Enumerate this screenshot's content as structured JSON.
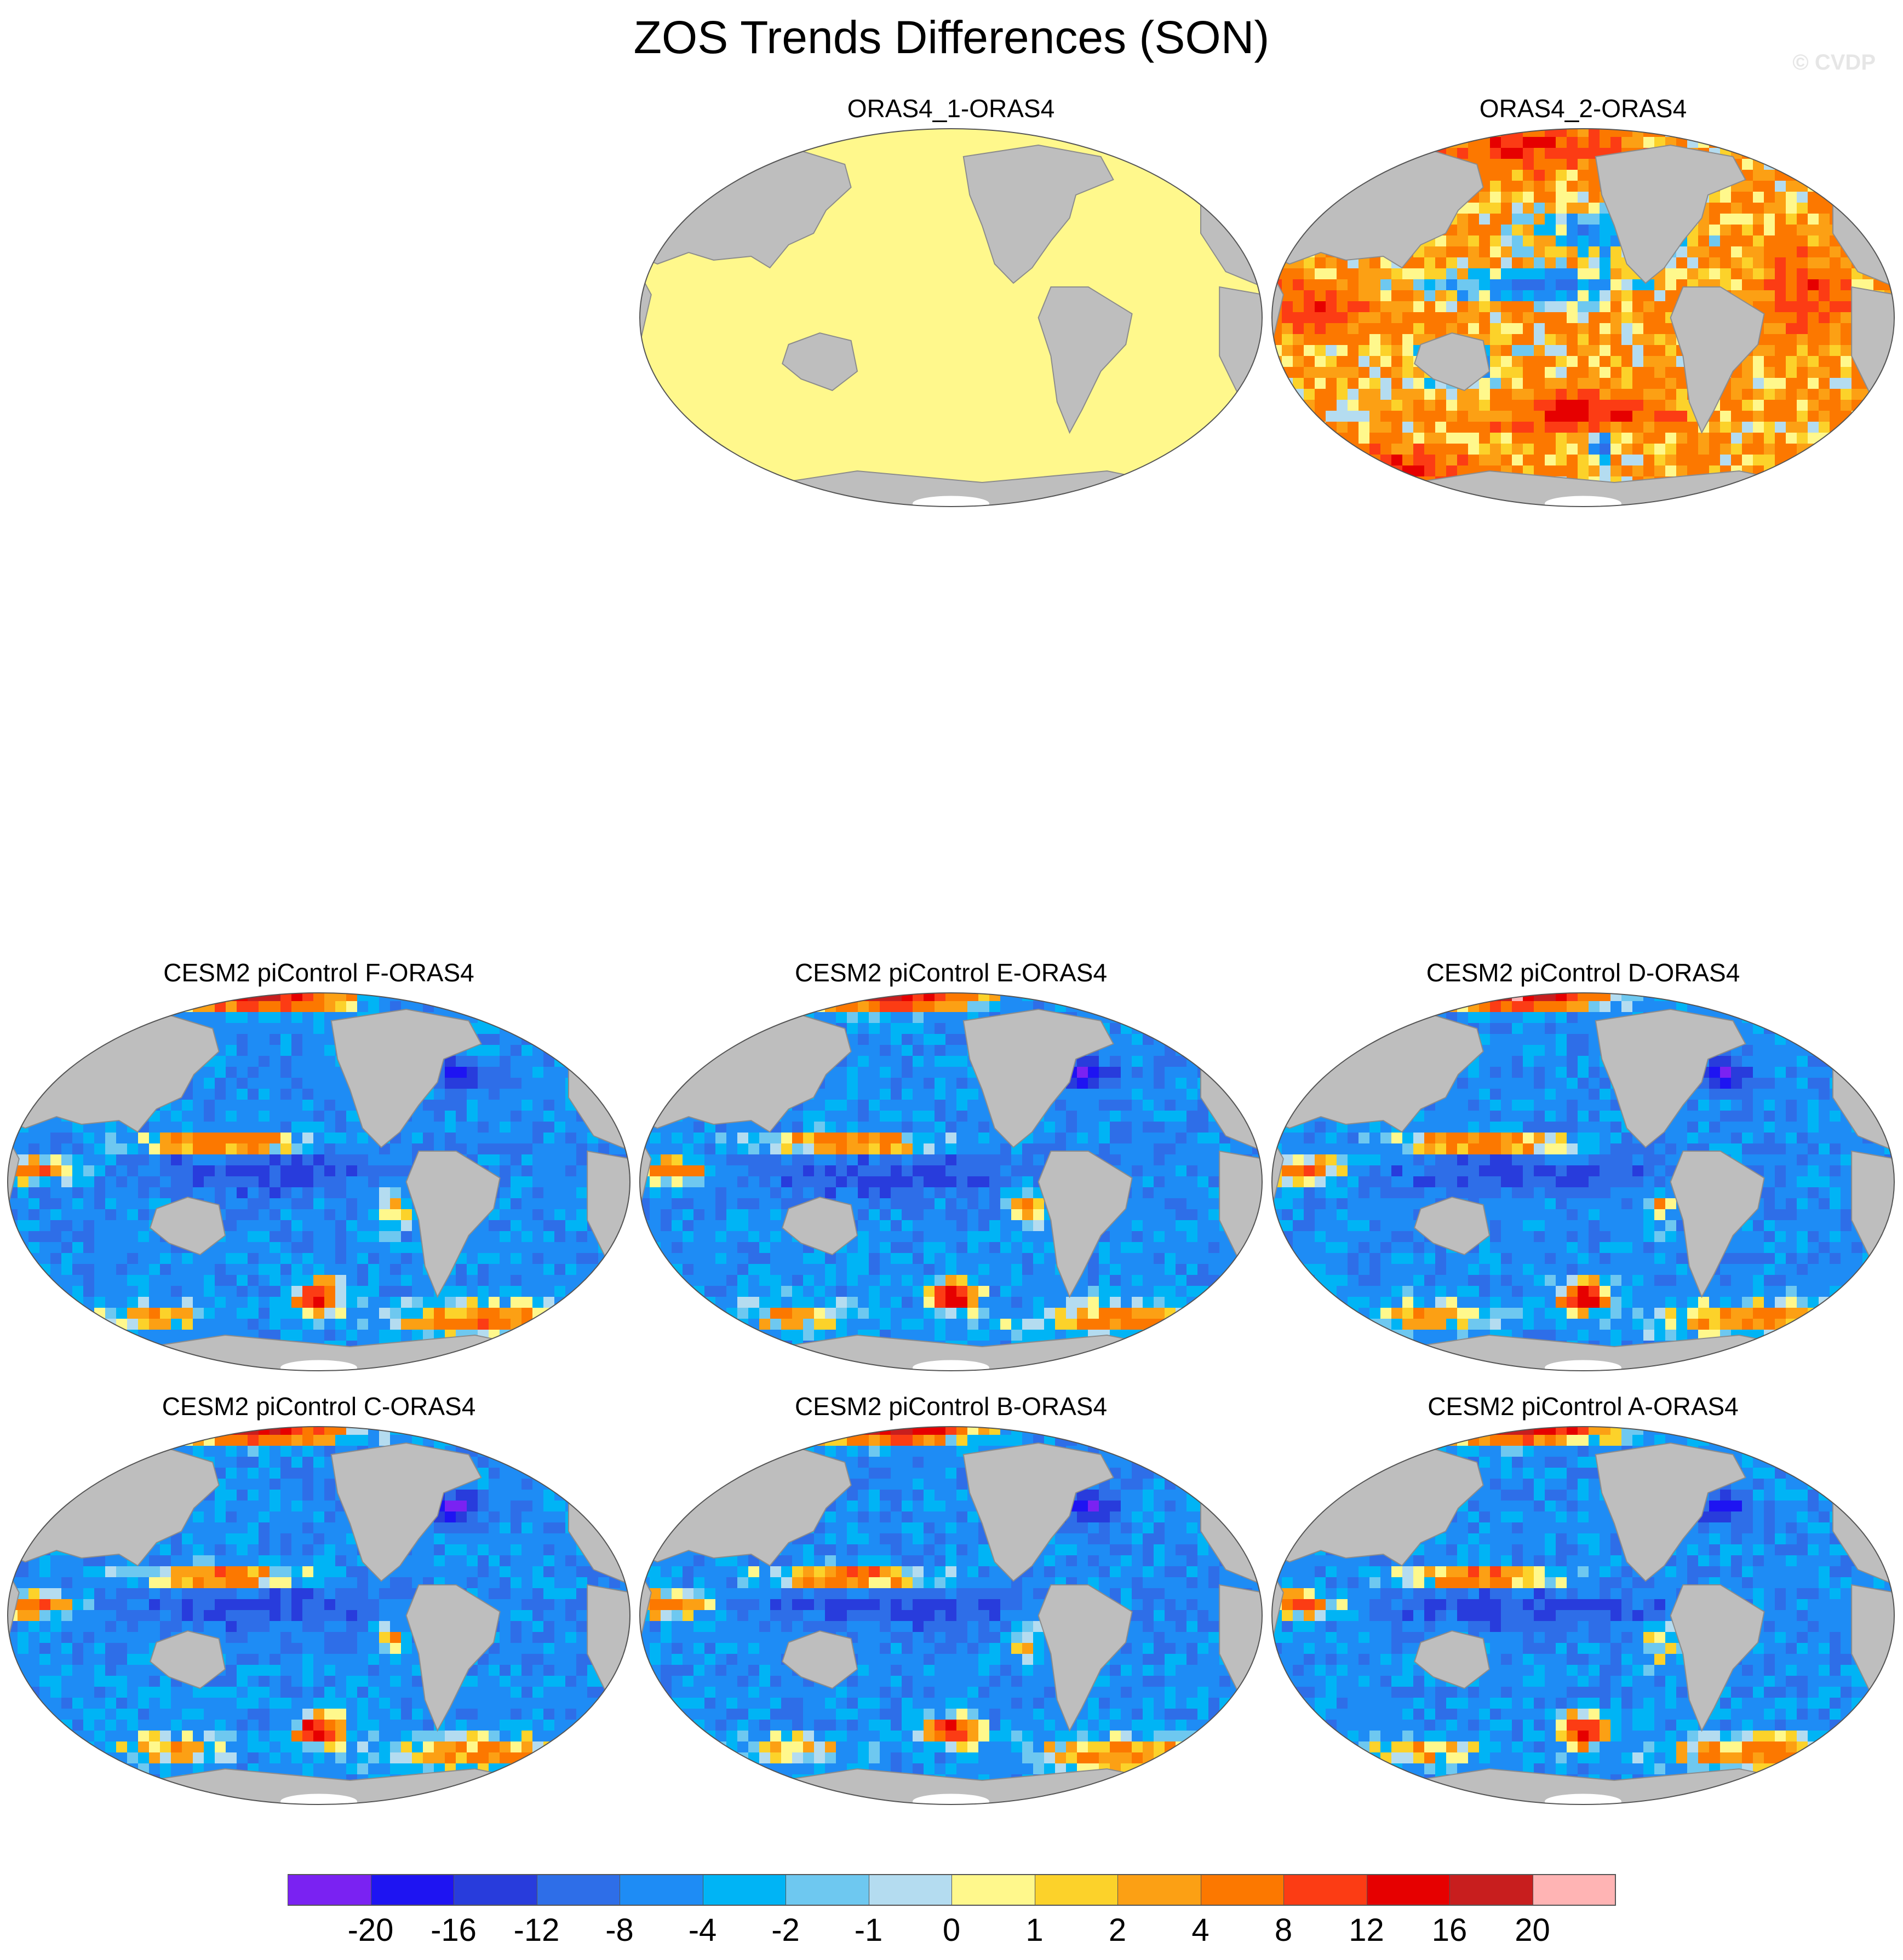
{
  "title": "ZOS Trends Differences (SON)",
  "watermark": "© CVDP",
  "panels": [
    {
      "title": "ORAS4_1-ORAS4",
      "pattern": "uniform",
      "seed": 1
    },
    {
      "title": "ORAS4_2-ORAS4",
      "pattern": "warm",
      "seed": 2
    },
    {
      "title": "CESM2 piControl F-ORAS4",
      "pattern": "cool",
      "seed": 3
    },
    {
      "title": "CESM2 piControl E-ORAS4",
      "pattern": "cool",
      "seed": 4
    },
    {
      "title": "CESM2 piControl D-ORAS4",
      "pattern": "cool",
      "seed": 5
    },
    {
      "title": "CESM2 piControl C-ORAS4",
      "pattern": "cool",
      "seed": 6
    },
    {
      "title": "CESM2 piControl B-ORAS4",
      "pattern": "cool",
      "seed": 7
    },
    {
      "title": "CESM2 piControl A-ORAS4",
      "pattern": "cool",
      "seed": 8
    }
  ],
  "colorbar": {
    "colors": [
      "#7a22f2",
      "#1e14f2",
      "#283cdc",
      "#2e6ee8",
      "#1e8cf5",
      "#00b4f5",
      "#6ec8f0",
      "#b4dcf0",
      "#fff88c",
      "#fcd22a",
      "#fca014",
      "#fc7800",
      "#fc3c14",
      "#e60000",
      "#c81e1e",
      "#ffb4b4"
    ],
    "labels": [
      "-20",
      "-16",
      "-12",
      "-8",
      "-4",
      "-2",
      "-1",
      "0",
      "1",
      "2",
      "4",
      "8",
      "12",
      "16",
      "20"
    ]
  },
  "colors": {
    "land": "#bebebe",
    "coast": "#8c8c8c",
    "uniform_ocean": "#fff88c",
    "antarctica_ice": "#ffffff"
  }
}
